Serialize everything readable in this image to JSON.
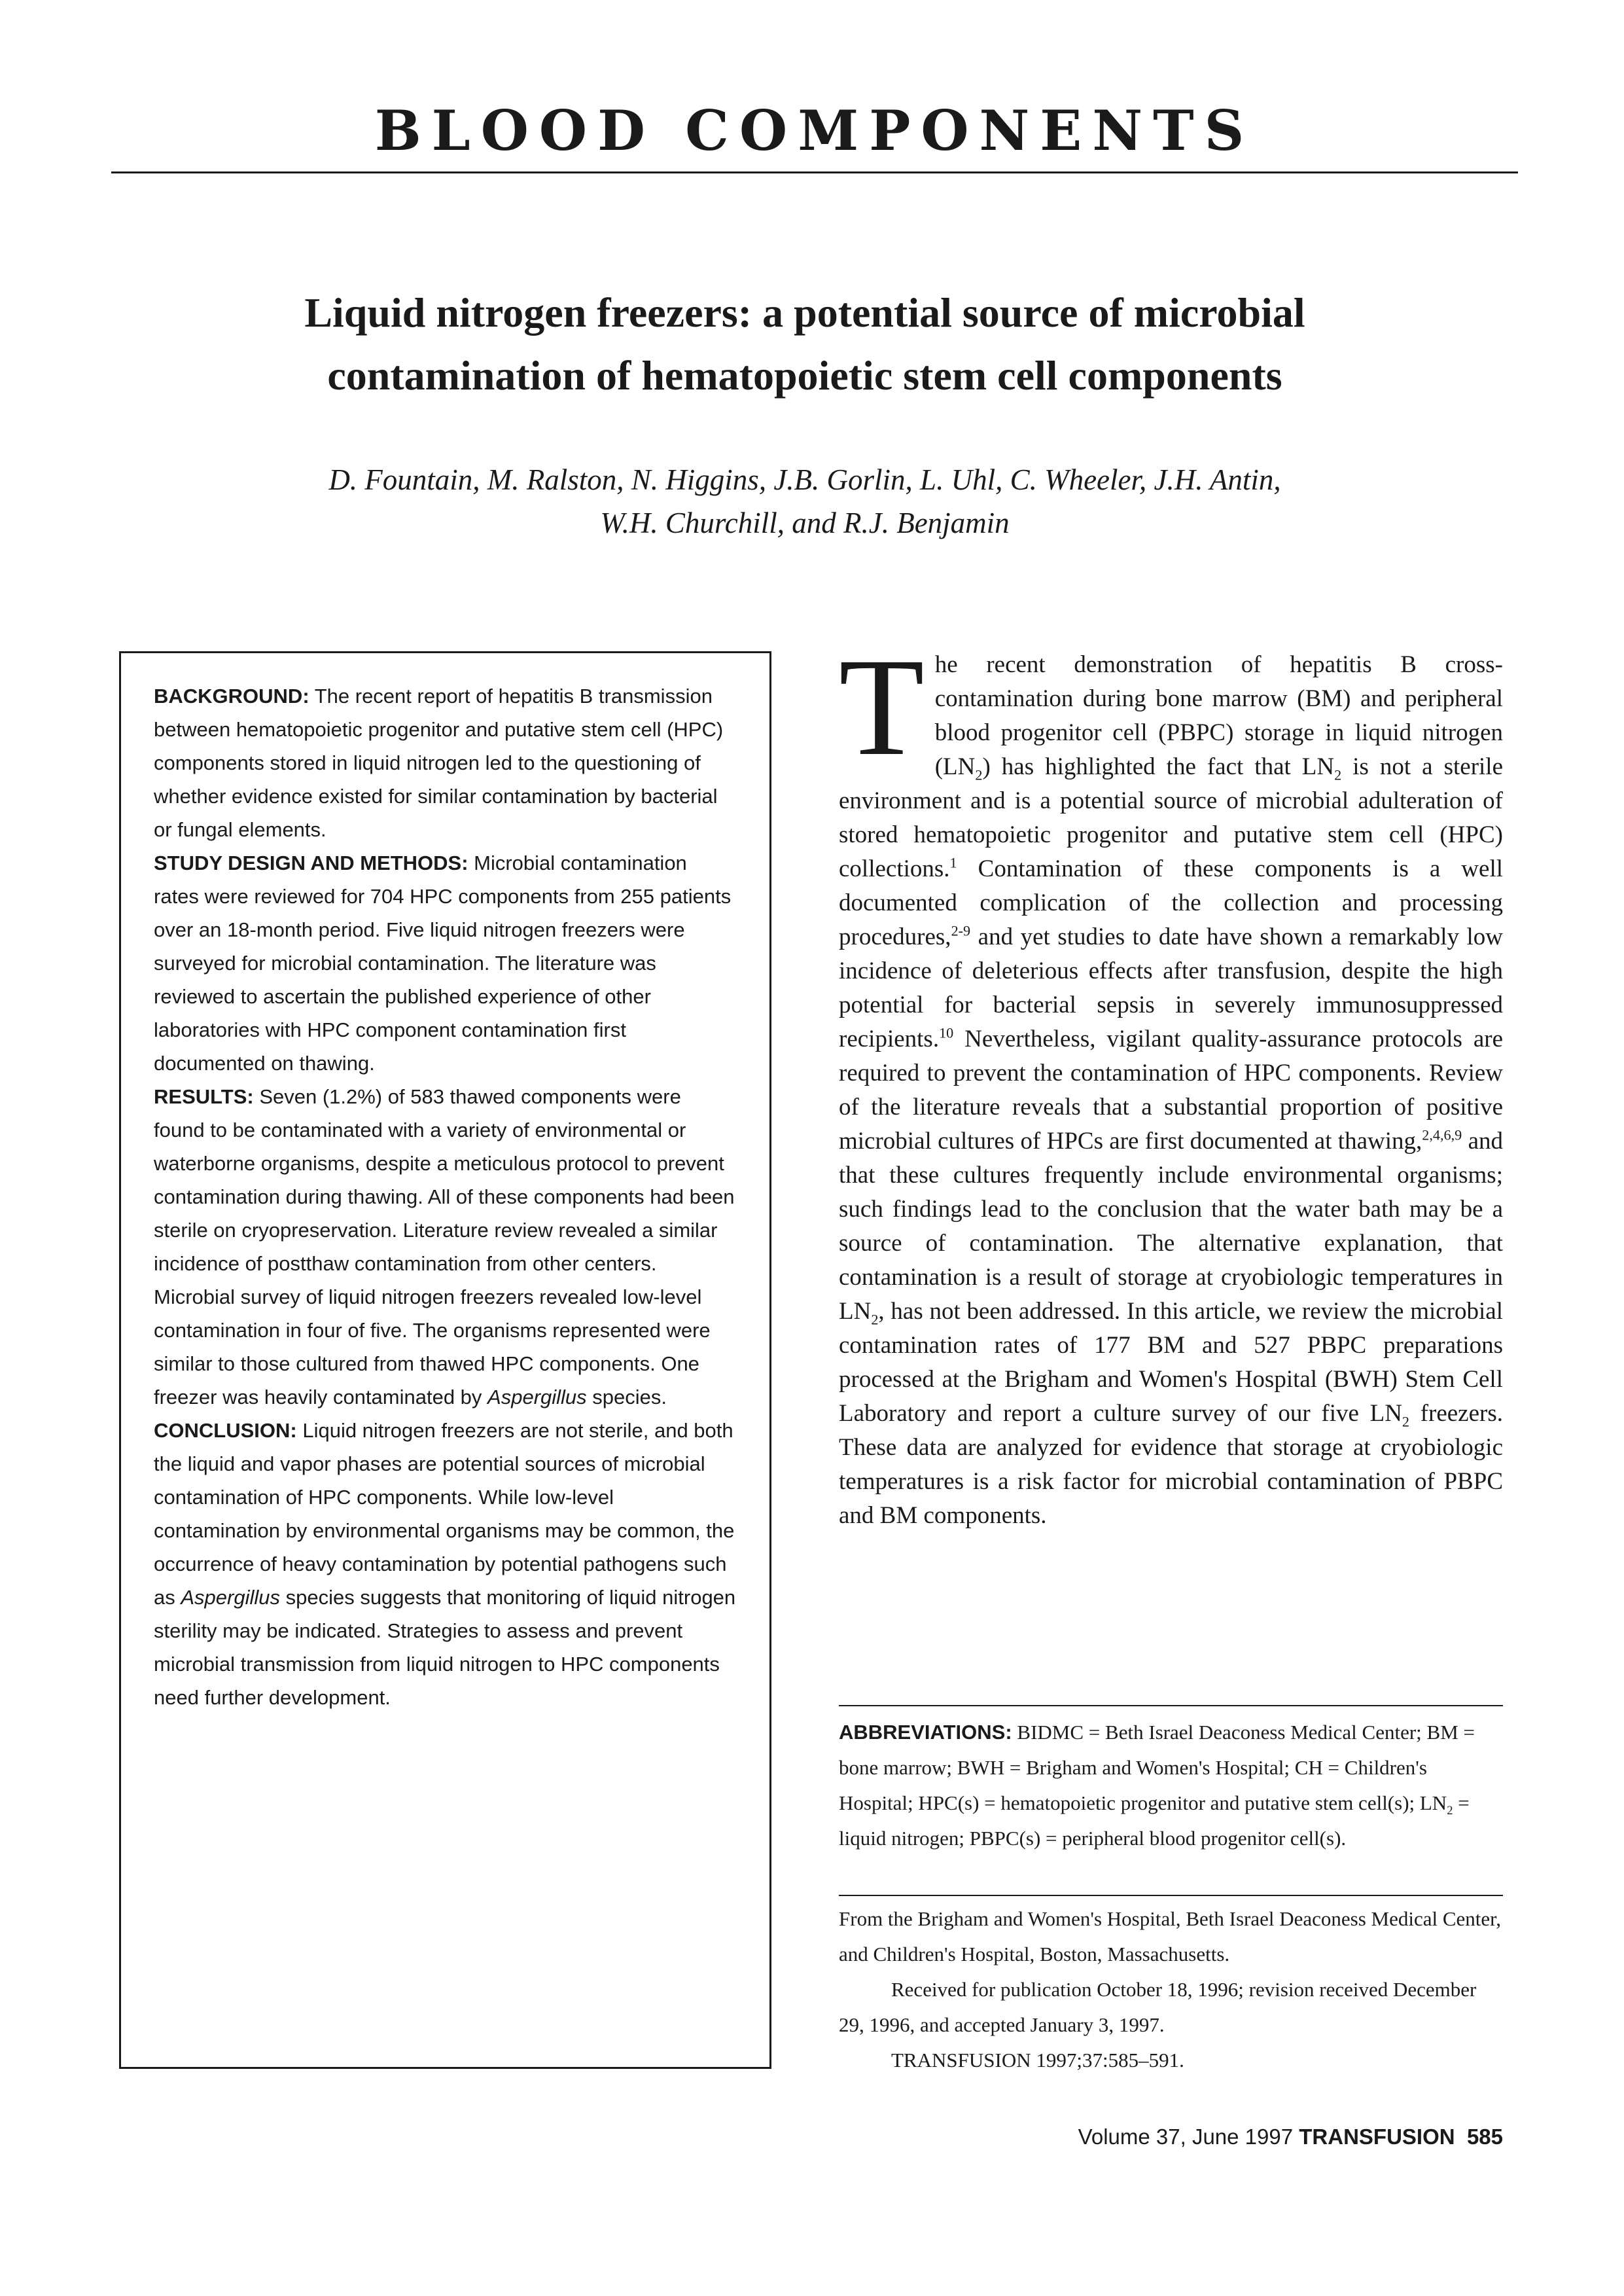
{
  "header": {
    "section": "BLOOD COMPONENTS"
  },
  "article": {
    "title_line1": "Liquid nitrogen freezers: a potential source of microbial",
    "title_line2": "contamination of hematopoietic stem cell components",
    "authors_line1": "D. Fountain, M. Ralston, N. Higgins, J.B. Gorlin, L. Uhl, C. Wheeler, J.H. Antin,",
    "authors_line2": "W.H. Churchill, and R.J. Benjamin"
  },
  "abstract": {
    "background_label": "BACKGROUND:",
    "background_text": " The recent report of hepatitis B transmission between hematopoietic progenitor and putative stem cell (HPC) components stored in liquid nitrogen led to the questioning of whether evidence existed for similar contamination by bacterial or fungal elements.",
    "methods_label": "STUDY DESIGN AND METHODS:",
    "methods_text": " Microbial contamination rates were reviewed for 704 HPC components from 255 patients over an 18-month period. Five liquid nitrogen freezers were surveyed for microbial contamination. The literature was reviewed to ascertain the published experience of other laboratories with HPC component contamination first documented on thawing.",
    "results_label": "RESULTS:",
    "results_text_a": " Seven (1.2%) of 583 thawed components were found to be contaminated with a variety of environmental or waterborne organisms, despite a meticulous protocol to prevent contamination during thawing. All of these components had been sterile on cryopreservation. Literature review revealed a similar incidence of postthaw contamination from other centers. Microbial survey of liquid nitrogen freezers revealed low-level contamination in four of five. The organisms represented were similar to those cultured from thawed HPC components. One freezer was heavily contaminated by ",
    "results_species": "Aspergillus",
    "results_text_b": " species.",
    "conclusion_label": "CONCLUSION:",
    "conclusion_text_a": " Liquid nitrogen freezers are not sterile, and both the liquid and vapor phases are potential sources of microbial contamination of HPC components. While low-level contamination by environmental organisms may be common, the occurrence of heavy contamination by potential pathogens such as ",
    "conclusion_species": "Aspergillus",
    "conclusion_text_b": " species suggests that monitoring of liquid nitrogen sterility may be indicated. Strategies to assess and prevent microbial transmission from liquid nitrogen to HPC components need further development."
  },
  "body": {
    "dropcap": "T",
    "p1_a": "he recent demonstration of hepatitis B cross-contamination during bone marrow (BM) and peripheral blood progenitor cell (PBPC) storage in liquid nitrogen (LN",
    "p1_b": ") has highlighted the fact that LN",
    "p1_c": " is not a sterile environment and is a potential source of microbial adulteration of stored hematopoietic progenitor and putative stem cell (HPC) collections.",
    "p1_d": " Contamination of these components is a well documented complication of the collection and processing procedures,",
    "p1_e": " and yet studies to date have shown a remarkably low incidence of deleterious effects after transfusion, despite the high potential for bacterial sepsis in severely immunosuppressed recipients.",
    "p1_f": " Nevertheless, vigilant quality-assurance protocols are required to prevent the contamination of HPC components. Review of the literature reveals that a substantial proportion of positive microbial cultures of HPCs are first documented at thawing,",
    "p1_g": " and that these cultures frequently include environmental organisms; such findings lead to the conclusion that the water bath may be a source of contamination. The alternative explanation, that contamination is a result of storage at cryobiologic temperatures in LN",
    "p1_h": ", has not been addressed. In this article, we review the microbial contamination rates of 177 BM and 527 PBPC preparations processed at the Brigham and Women's Hospital (BWH) Stem Cell Laboratory and report a culture survey of our five LN",
    "p1_i": " freezers. These data are analyzed for evidence that storage at cryobiologic temperatures is a risk factor for microbial contamination of PBPC and BM components.",
    "sub_2": "2",
    "ref_1": "1",
    "ref_2": "2-9",
    "ref_3": "10",
    "ref_4": "2,4,6,9"
  },
  "abbreviations": {
    "label": "ABBREVIATIONS:",
    "text_a": " BIDMC = Beth Israel Deaconess Medical Center; BM = bone marrow; BWH = Brigham and Women's Hospital; CH = Children's Hospital; HPC(s) = hematopoietic progenitor and putative stem cell(s); LN",
    "sub_2": "2",
    "text_b": " = liquid nitrogen; PBPC(s) = peripheral blood progenitor cell(s)."
  },
  "affiliation": {
    "institutions": "From the Brigham and Women's Hospital, Beth Israel Deaconess Medical Center, and Children's Hospital, Boston, Massachusetts.",
    "received": "Received for publication October 18, 1996; revision received December 29, 1996, and accepted January 3, 1997.",
    "citation": "TRANSFUSION 1997;37:585–591."
  },
  "footer": {
    "volume": "Volume 37, June 1997",
    "journal": "TRANSFUSION",
    "page": "585"
  }
}
